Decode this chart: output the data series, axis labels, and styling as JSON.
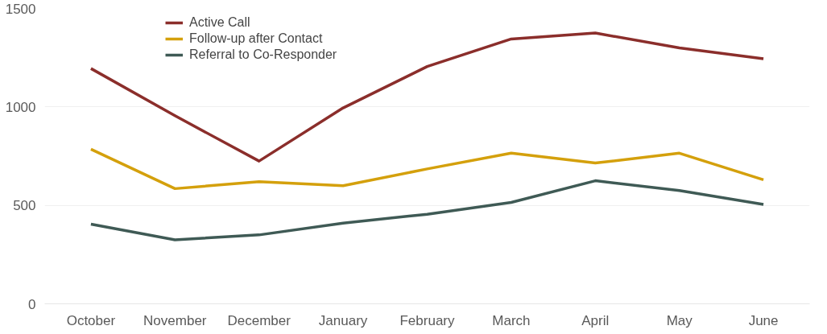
{
  "chart_data": {
    "type": "line",
    "categories": [
      "October",
      "November",
      "December",
      "January",
      "February",
      "March",
      "April",
      "May",
      "June"
    ],
    "series": [
      {
        "name": "Active Call",
        "color": "#8b2e2b",
        "values": [
          1195,
          955,
          725,
          995,
          1205,
          1345,
          1375,
          1300,
          1245
        ]
      },
      {
        "name": "Follow-up after Contact",
        "color": "#d4a00c",
        "values": [
          785,
          585,
          620,
          600,
          685,
          765,
          715,
          765,
          630
        ]
      },
      {
        "name": "Referral to Co-Responder",
        "color": "#3f5a55",
        "values": [
          405,
          325,
          350,
          410,
          455,
          515,
          625,
          575,
          505
        ]
      }
    ],
    "ylim": [
      0,
      1500
    ],
    "yticks": [
      0,
      500,
      1000,
      1500
    ],
    "grid": "y",
    "legend": "top left",
    "line_style": "solid"
  }
}
